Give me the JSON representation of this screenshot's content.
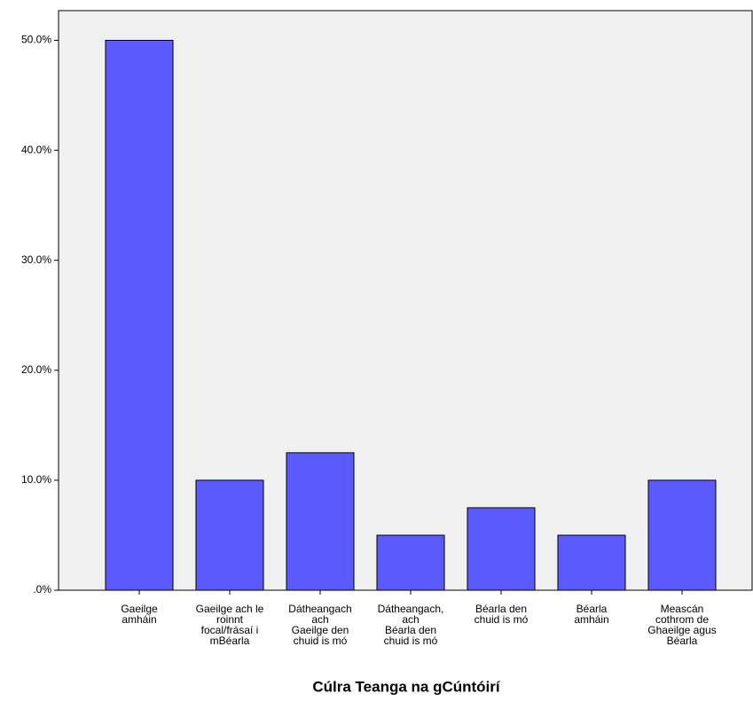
{
  "chart_data": {
    "type": "bar",
    "x_label": "Cúlra Teanga na gCúntóirí",
    "categories": [
      [
        "Gaeilge",
        "amháin"
      ],
      [
        "Gaeilge ach le",
        "roinnt",
        "focal/frásaí i",
        "mBéarla"
      ],
      [
        "Dátheangach",
        "ach",
        "Gaeilge den",
        "chuid is mó"
      ],
      [
        "Dátheangach,",
        "ach",
        "Béarla den",
        "chuid is mó"
      ],
      [
        "Béarla den",
        "chuid is mó"
      ],
      [
        "Béarla",
        "amháin"
      ],
      [
        "Meascán",
        "cothrom de",
        "Ghaeilge agus",
        "Béarla"
      ]
    ],
    "values": [
      50,
      10,
      12.5,
      5,
      7.5,
      5,
      10
    ],
    "color": "#5a5aff",
    "ylim": [
      0,
      52.7
    ],
    "yticks": [
      {
        "value": 0,
        "label": ".0%"
      },
      {
        "value": 10,
        "label": "10.0%"
      },
      {
        "value": 20,
        "label": "20.0%"
      },
      {
        "value": 30,
        "label": "30.0%"
      },
      {
        "value": 40,
        "label": "40.0%"
      },
      {
        "value": 50,
        "label": "50.0%"
      }
    ],
    "grid": false
  }
}
